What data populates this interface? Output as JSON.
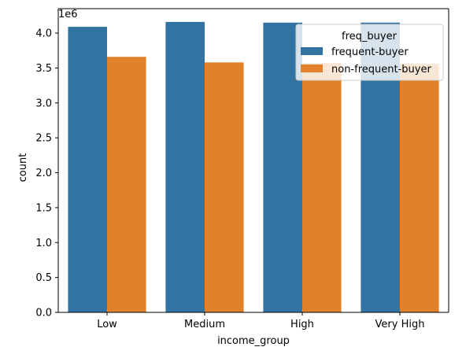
{
  "chart_data": {
    "type": "bar",
    "xlabel": "income_group",
    "ylabel": "count",
    "y_offset_label": "1e6",
    "categories": [
      "Low",
      "Medium",
      "High",
      "Very High"
    ],
    "series": [
      {
        "name": "frequent-buyer",
        "color": "#3274a1",
        "values": [
          4.09,
          4.16,
          4.15,
          4.15
        ]
      },
      {
        "name": "non-frequent-buyer",
        "color": "#e1812c",
        "values": [
          3.66,
          3.58,
          3.57,
          3.56
        ]
      }
    ],
    "ylim": [
      0,
      4.35
    ],
    "yticks": [
      "0.0",
      "0.5",
      "1.0",
      "1.5",
      "2.0",
      "2.5",
      "3.0",
      "3.5",
      "4.0"
    ],
    "grid": false,
    "legend": {
      "title": "freq_buyer",
      "placement": "top-right"
    }
  }
}
